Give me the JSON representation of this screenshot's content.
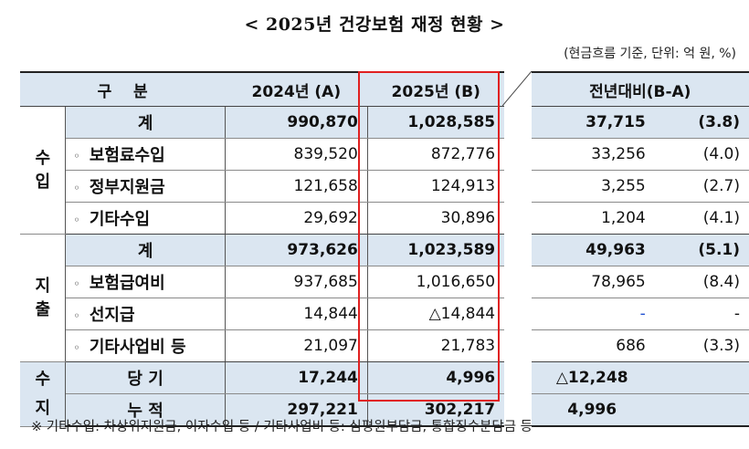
{
  "title": "< 2025년 건강보험 재정 현황 >",
  "unit_note": "(현금흐름 기준, 단위: 억 원, %)",
  "columns": {
    "category": "구    분",
    "y2024": "2024년 (A)",
    "y2025": "2025년 (B)",
    "diff": "전년대비(B-A)"
  },
  "groups": {
    "income": "수\n입",
    "expense": "지\n출",
    "balance": "수\n지"
  },
  "bullet": "◦",
  "rows": [
    {
      "label": "계",
      "a": "990,870",
      "b": "1,028,585",
      "d": "37,715",
      "p": "(3.8)"
    },
    {
      "label": "보험료수입",
      "a": "839,520",
      "b": "872,776",
      "d": "33,256",
      "p": "(4.0)"
    },
    {
      "label": "정부지원금",
      "a": "121,658",
      "b": "124,913",
      "d": "3,255",
      "p": "(2.7)"
    },
    {
      "label": "기타수입",
      "a": "29,692",
      "b": "30,896",
      "d": "1,204",
      "p": "(4.1)"
    },
    {
      "label": "계",
      "a": "973,626",
      "b": "1,023,589",
      "d": "49,963",
      "p": "(5.1)"
    },
    {
      "label": "보험급여비",
      "a": "937,685",
      "b": "1,016,650",
      "d": "78,965",
      "p": "(8.4)"
    },
    {
      "label": "선지급",
      "a": "14,844",
      "b": "△14,844",
      "d": "-",
      "p": "-"
    },
    {
      "label": "기타사업비 등",
      "a": "21,097",
      "b": "21,783",
      "d": "686",
      "p": "(3.3)"
    },
    {
      "label": "당 기",
      "a": "17,244",
      "b": "4,996",
      "d": "△12,248",
      "p": ""
    },
    {
      "label": "누 적",
      "a": "297,221",
      "b": "302,217",
      "d": "4,996",
      "p": ""
    }
  ],
  "footnote": "※ 기타수입: 차상위지원금, 이자수입 등 / 기타사업비 등: 심평원부담금, 통합징수분담금 등",
  "colors": {
    "header_bg": "#dbe6f1",
    "highlight_border": "#e02020",
    "dash_color": "#1f4fd1"
  }
}
